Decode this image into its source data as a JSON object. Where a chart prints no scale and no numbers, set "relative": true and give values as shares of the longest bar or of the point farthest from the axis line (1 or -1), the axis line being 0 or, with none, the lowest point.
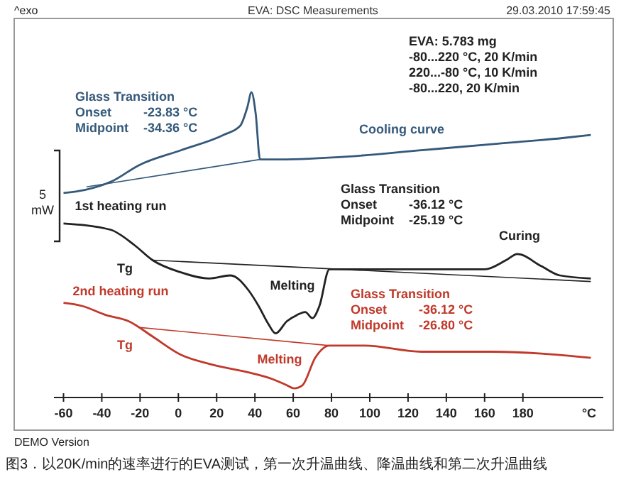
{
  "chart_data": {
    "type": "line",
    "relative": true,
    "title": "EVA: DSC Measurements",
    "subtitle": "29.03.2010 17:59:45",
    "ylabel": "5 mW",
    "xlabel": "°C",
    "xlim": [
      -65,
      222
    ],
    "xticks": [
      -60,
      -40,
      -20,
      0,
      20,
      40,
      60,
      80,
      100,
      120,
      140,
      160,
      180
    ],
    "grid": false,
    "marker": "none",
    "line_style": "solid",
    "series": [
      {
        "color": "#34597a",
        "x": [
          -60,
          -48.9,
          -34.2,
          -20.9,
          1.3,
          23.5,
          32.3,
          36,
          38.2,
          40.4,
          42.7,
          53,
          89.9,
          126.9,
          163.8,
          200.7,
          215.5
        ],
        "values": [
          0.67,
          0.68,
          0.71,
          0.76,
          0.81,
          0.86,
          0.89,
          0.95,
          1,
          0.93,
          0.78,
          0.78,
          0.79,
          0.81,
          0.83,
          0.85,
          0.86
        ]
      },
      {
        "color": "#34597a",
        "x": [
          -48,
          42.7
        ],
        "values": [
          0.69,
          0.78
        ]
      },
      {
        "color": "#222222",
        "x": [
          -60,
          -35.6,
          -23.1,
          -13.5,
          1.3,
          16.1,
          27.2,
          36.8,
          41.9,
          47.1,
          50.8,
          56.7,
          61.9,
          66.3,
          70,
          73.7,
          78.9,
          86.2,
          126.9,
          149,
          160.1,
          171.2,
          177.1,
          189.7,
          199.3,
          215.5
        ],
        "values": [
          0.57,
          0.55,
          0.5,
          0.45,
          0.41,
          0.39,
          0.4,
          0.35,
          0.3,
          0.24,
          0.21,
          0.25,
          0.27,
          0.28,
          0.26,
          0.3,
          0.42,
          0.42,
          0.42,
          0.42,
          0.42,
          0.45,
          0.47,
          0.43,
          0.4,
          0.39
        ]
      },
      {
        "color": "#222222",
        "x": [
          -13.5,
          215.5
        ],
        "values": [
          0.45,
          0.38
        ]
      },
      {
        "color": "#c0392b",
        "x": [
          -60,
          -50.4,
          -37.8,
          -26,
          -13.5,
          1.3,
          16.1,
          38.2,
          49.3,
          56.7,
          60.4,
          64.8,
          71.5,
          78.9,
          97.3,
          126.9,
          163.8,
          215.5
        ],
        "values": [
          0.31,
          0.3,
          0.27,
          0.25,
          0.2,
          0.14,
          0.11,
          0.08,
          0.06,
          0.04,
          0.03,
          0.04,
          0.13,
          0.17,
          0.17,
          0.15,
          0.15,
          0.13
        ]
      },
      {
        "color": "#c0392b",
        "x": [
          -21,
          78.9
        ],
        "values": [
          0.23,
          0.17
        ]
      }
    ],
    "annotations": [
      "^exo",
      "Glass Transition\nOnset\t-23.83 °C\nMidpoint\t-34.36 °C",
      "EVA: 5.783 mg\n-80...220 °C, 20 K/min\n220...-80 °C, 10 K/min\n-80...220, 20 K/min",
      "Glass Transition\nOnset\t-36.12 °C\nMidpoint\t-25.19 °C",
      "Glass Transition\nOnset\t-36.12 °C\nMidpoint\t-26.80 °C",
      "DEMO Version",
      "图3．以20K/min的速率进行的EVA测试，第一次升温曲线、降温曲线和第二次升温曲线",
      "Cooling curve",
      "1st heating run",
      "Tg",
      "Melting",
      "Curing",
      "2nd heating run",
      "Tg",
      "Melting"
    ]
  }
}
